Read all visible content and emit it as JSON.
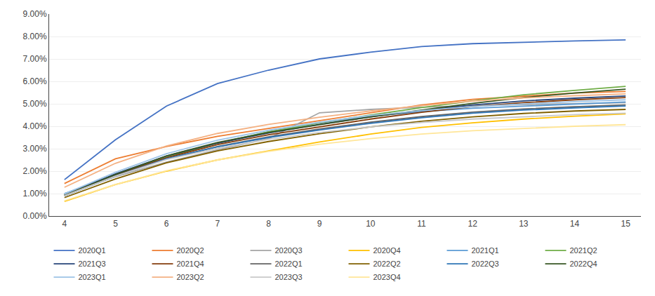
{
  "chart_data": {
    "type": "line",
    "x": [
      4,
      5,
      6,
      7,
      8,
      9,
      10,
      11,
      12,
      13,
      14,
      15
    ],
    "series": [
      {
        "name": "2020Q1",
        "color": "#4472C4",
        "values": [
          0.0162,
          0.034,
          0.049,
          0.059,
          0.065,
          0.07,
          0.073,
          0.0755,
          0.0768,
          0.0775,
          0.078,
          0.0785
        ]
      },
      {
        "name": "2020Q2",
        "color": "#ED7D31",
        "values": [
          0.0145,
          0.0255,
          0.031,
          0.0355,
          0.039,
          0.0425,
          0.046,
          0.0495,
          0.052,
          0.0535,
          0.0548,
          0.0555
        ]
      },
      {
        "name": "2020Q3",
        "color": "#A5A5A5",
        "values": [
          0.01,
          0.0175,
          0.024,
          0.0295,
          0.0345,
          0.046,
          0.0475,
          0.0485,
          0.0492,
          0.0497,
          0.0501,
          0.0505
        ]
      },
      {
        "name": "2020Q4",
        "color": "#FFC000",
        "values": [
          0.0065,
          0.014,
          0.02,
          0.025,
          0.029,
          0.033,
          0.0365,
          0.0395,
          0.0415,
          0.0432,
          0.0445,
          0.0455
        ]
      },
      {
        "name": "2021Q1",
        "color": "#5B9BD5",
        "values": [
          0.01,
          0.0185,
          0.0265,
          0.0325,
          0.0375,
          0.0415,
          0.0445,
          0.0465,
          0.048,
          0.049,
          0.05,
          0.0508
        ]
      },
      {
        "name": "2021Q2",
        "color": "#70AD47",
        "values": [
          0.0095,
          0.0185,
          0.0262,
          0.0325,
          0.0375,
          0.0415,
          0.045,
          0.0483,
          0.0513,
          0.054,
          0.056,
          0.0578
        ]
      },
      {
        "name": "2021Q3",
        "color": "#264478",
        "values": [
          0.0095,
          0.0188,
          0.0268,
          0.0325,
          0.037,
          0.0408,
          0.0442,
          0.047,
          0.0495,
          0.0513,
          0.0525,
          0.0535
        ]
      },
      {
        "name": "2021Q4",
        "color": "#843C0C",
        "values": [
          0.0092,
          0.0182,
          0.026,
          0.0318,
          0.0362,
          0.0398,
          0.0432,
          0.0462,
          0.0488,
          0.0505,
          0.0518,
          0.0528
        ]
      },
      {
        "name": "2022Q1",
        "color": "#636363",
        "values": [
          0.009,
          0.0178,
          0.0255,
          0.031,
          0.0353,
          0.0388,
          0.0418,
          0.0443,
          0.0463,
          0.0477,
          0.0487,
          0.0495
        ]
      },
      {
        "name": "2022Q2",
        "color": "#806000",
        "values": [
          0.0082,
          0.0165,
          0.0237,
          0.029,
          0.0332,
          0.0367,
          0.0397,
          0.0422,
          0.0442,
          0.0457,
          0.0468,
          0.0475
        ]
      },
      {
        "name": "2022Q3",
        "color": "#2E75B6",
        "values": [
          0.009,
          0.0178,
          0.0255,
          0.0308,
          0.035,
          0.0383,
          0.0413,
          0.0438,
          0.0458,
          0.0472,
          0.0482,
          0.049
        ]
      },
      {
        "name": "2022Q4",
        "color": "#375623",
        "values": [
          0.0092,
          0.0185,
          0.0268,
          0.0328,
          0.0372,
          0.0408,
          0.0442,
          0.0472,
          0.0502,
          0.0528,
          0.0548,
          0.0565
        ]
      },
      {
        "name": "2023Q1",
        "color": "#9DC3E6",
        "values": [
          0.0098,
          0.0195,
          0.0278,
          0.0338,
          0.0382,
          0.0418,
          0.0448,
          0.047,
          0.0488,
          0.05,
          0.051,
          0.0518
        ]
      },
      {
        "name": "2023Q2",
        "color": "#F4B183",
        "values": [
          0.0128,
          0.0235,
          0.0312,
          0.0368,
          0.0408,
          0.044,
          0.0468,
          0.0492,
          0.0512,
          0.0526,
          0.0536,
          0.0544
        ]
      },
      {
        "name": "2023Q3",
        "color": "#C9C9C9",
        "values": [
          0.009,
          0.0178,
          0.0252,
          0.0302,
          0.0342,
          0.0372,
          0.0397,
          0.0417,
          0.0432,
          0.0443,
          0.0452,
          0.0458
        ]
      },
      {
        "name": "2023Q4",
        "color": "#FFE699",
        "values": [
          0.0068,
          0.014,
          0.0202,
          0.025,
          0.0288,
          0.032,
          0.0345,
          0.0365,
          0.038,
          0.0391,
          0.04,
          0.0407
        ]
      }
    ],
    "xlim": [
      3.7,
      15.3
    ],
    "xticks": [
      4,
      5,
      6,
      7,
      8,
      9,
      10,
      11,
      12,
      13,
      14,
      15
    ],
    "ylim": [
      0.0,
      0.09
    ],
    "yticks": [
      {
        "value": 0.0,
        "label": "0.00%"
      },
      {
        "value": 0.01,
        "label": "1.00%"
      },
      {
        "value": 0.02,
        "label": "2.00%"
      },
      {
        "value": 0.03,
        "label": "3.00%"
      },
      {
        "value": 0.04,
        "label": "4.00%"
      },
      {
        "value": 0.05,
        "label": "5.00%"
      },
      {
        "value": 0.06,
        "label": "6.00%"
      },
      {
        "value": 0.07,
        "label": "7.00%"
      },
      {
        "value": 0.08,
        "label": "8.00%"
      },
      {
        "value": 0.09,
        "label": "9.00%"
      }
    ],
    "grid": true,
    "legend": "bottom"
  }
}
